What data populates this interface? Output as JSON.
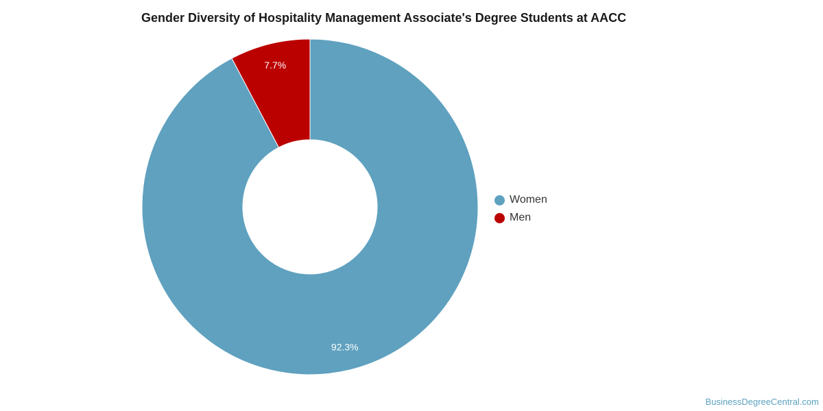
{
  "chart_data": {
    "type": "pie",
    "donut": true,
    "title": "Gender Diversity of Hospitality Management Associate's Degree Students at AACC",
    "categories": [
      "Women",
      "Men"
    ],
    "values": [
      92.3,
      7.7
    ],
    "labels": [
      "92.3%",
      "7.7%"
    ],
    "colors": [
      "#5fa1bf",
      "#bb0000"
    ],
    "legend_position": "right"
  },
  "credit": "BusinessDegreeCentral.com"
}
